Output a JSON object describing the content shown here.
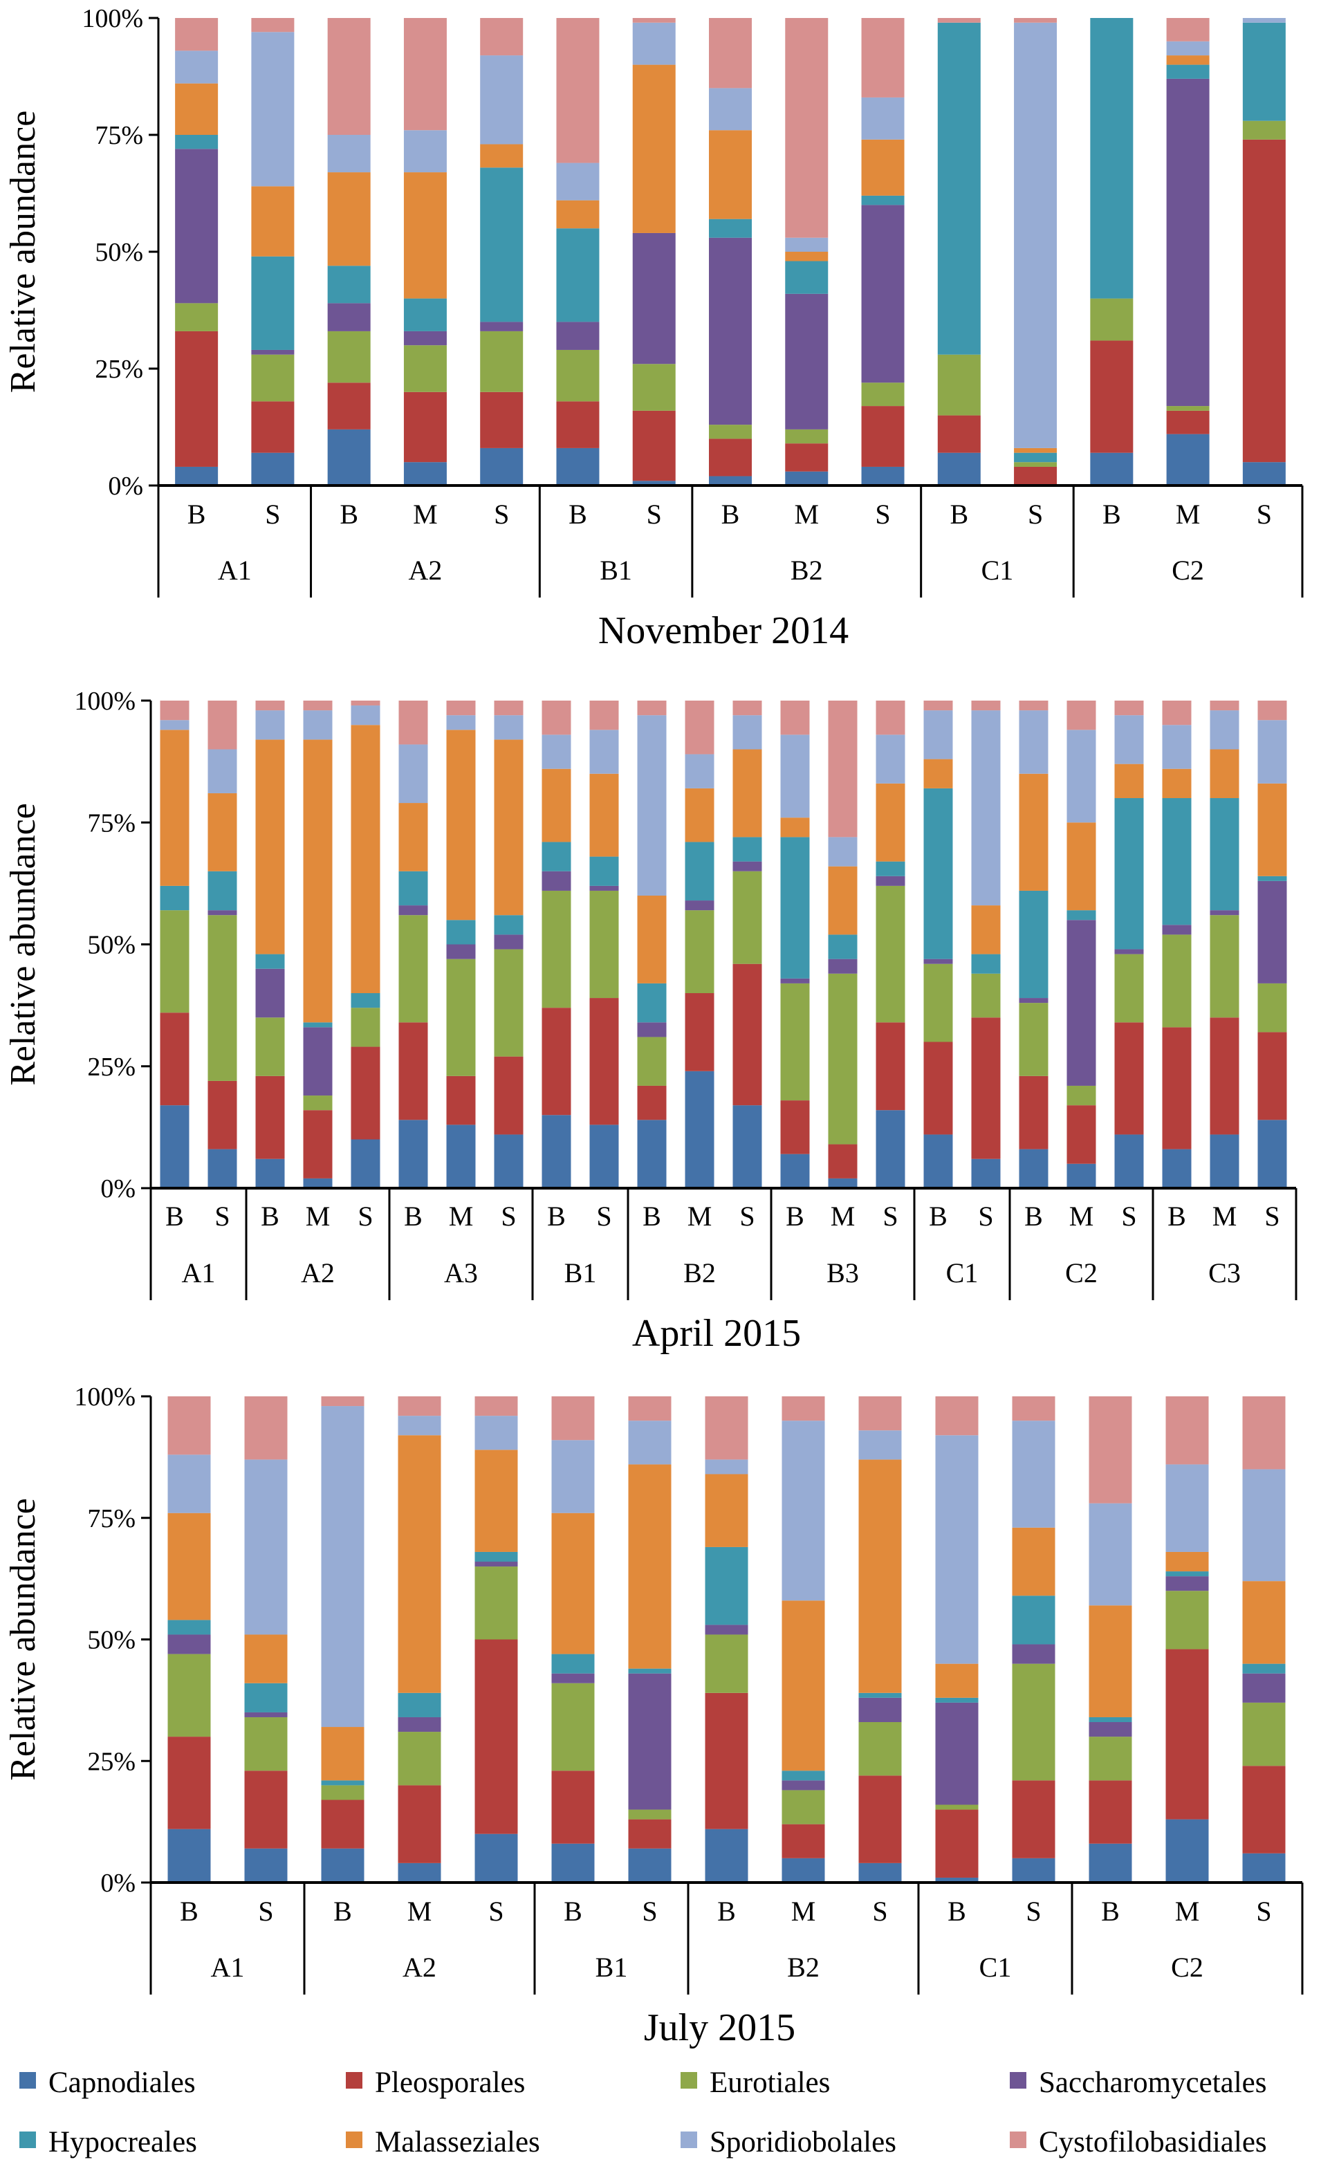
{
  "colors": {
    "Capnodiales": "#4472a8",
    "Pleosporales": "#b43f3c",
    "Eurotiales": "#8ea84a",
    "Saccharomycetales": "#6e5594",
    "Hypocreales": "#3e97ad",
    "Malasseziales": "#e18a3b",
    "Sporidiobolales": "#97acd4",
    "Cystofilobasidiales": "#d7908f"
  },
  "legend": {
    "items": [
      "Capnodiales",
      "Pleosporales",
      "Eurotiales",
      "Saccharomycetales",
      "Hypocreales",
      "Malasseziales",
      "Sporidiobolales",
      "Cystofilobasidiales"
    ]
  },
  "chart_data": [
    {
      "type": "bar",
      "stacked": true,
      "title": "November 2014",
      "ylabel": "Relative abundance",
      "yticks": [
        "0%",
        "25%",
        "50%",
        "75%",
        "100%"
      ],
      "ylim": [
        0,
        100
      ],
      "series_order": [
        "Capnodiales",
        "Pleosporales",
        "Eurotiales",
        "Saccharomycetales",
        "Hypocreales",
        "Malasseziales",
        "Sporidiobolales",
        "Cystofilobasidiales"
      ],
      "groups": [
        {
          "label": "A1",
          "bars": [
            {
              "label": "B",
              "values": [
                4,
                29,
                6,
                33,
                3,
                11,
                7,
                7
              ]
            },
            {
              "label": "S",
              "values": [
                7,
                11,
                10,
                1,
                20,
                15,
                33,
                3
              ]
            }
          ]
        },
        {
          "label": "A2",
          "bars": [
            {
              "label": "B",
              "values": [
                12,
                10,
                11,
                6,
                8,
                20,
                8,
                25
              ]
            },
            {
              "label": "M",
              "values": [
                5,
                15,
                10,
                3,
                7,
                27,
                9,
                24
              ]
            },
            {
              "label": "S",
              "values": [
                8,
                12,
                13,
                2,
                33,
                5,
                19,
                8
              ]
            }
          ]
        },
        {
          "label": "B1",
          "bars": [
            {
              "label": "B",
              "values": [
                8,
                10,
                11,
                6,
                20,
                6,
                8,
                31
              ]
            },
            {
              "label": "S",
              "values": [
                1,
                15,
                10,
                28,
                0,
                36,
                9,
                1
              ]
            }
          ]
        },
        {
          "label": "B2",
          "bars": [
            {
              "label": "B",
              "values": [
                2,
                8,
                3,
                40,
                4,
                19,
                9,
                15
              ]
            },
            {
              "label": "M",
              "values": [
                3,
                6,
                3,
                29,
                7,
                2,
                3,
                47
              ]
            },
            {
              "label": "S",
              "values": [
                4,
                13,
                5,
                38,
                2,
                12,
                9,
                17
              ]
            }
          ]
        },
        {
          "label": "C1",
          "bars": [
            {
              "label": "B",
              "values": [
                7,
                8,
                13,
                0,
                71,
                0,
                0,
                1
              ]
            },
            {
              "label": "S",
              "values": [
                0,
                4,
                1,
                0,
                2,
                1,
                91,
                1
              ]
            }
          ]
        },
        {
          "label": "C2",
          "bars": [
            {
              "label": "B",
              "values": [
                7,
                24,
                9,
                0,
                60,
                0,
                0,
                0
              ]
            },
            {
              "label": "M",
              "values": [
                11,
                5,
                1,
                70,
                3,
                2,
                3,
                5
              ]
            },
            {
              "label": "S",
              "values": [
                5,
                69,
                4,
                0,
                21,
                0,
                1,
                0
              ]
            }
          ]
        }
      ]
    },
    {
      "type": "bar",
      "stacked": true,
      "title": "April 2015",
      "ylabel": "Relative abundance",
      "yticks": [
        "0%",
        "25%",
        "50%",
        "75%",
        "100%"
      ],
      "ylim": [
        0,
        100
      ],
      "series_order": [
        "Capnodiales",
        "Pleosporales",
        "Eurotiales",
        "Saccharomycetales",
        "Hypocreales",
        "Malasseziales",
        "Sporidiobolales",
        "Cystofilobasidiales"
      ],
      "groups": [
        {
          "label": "A1",
          "bars": [
            {
              "label": "B",
              "values": [
                17,
                19,
                21,
                0,
                5,
                32,
                2,
                4
              ]
            },
            {
              "label": "S",
              "values": [
                8,
                14,
                34,
                1,
                8,
                16,
                9,
                10
              ]
            }
          ]
        },
        {
          "label": "A2",
          "bars": [
            {
              "label": "B",
              "values": [
                6,
                17,
                12,
                10,
                3,
                44,
                6,
                2
              ]
            },
            {
              "label": "M",
              "values": [
                2,
                14,
                3,
                14,
                1,
                58,
                6,
                2
              ]
            },
            {
              "label": "S",
              "values": [
                10,
                19,
                8,
                0,
                3,
                55,
                4,
                1
              ]
            }
          ]
        },
        {
          "label": "A3",
          "bars": [
            {
              "label": "B",
              "values": [
                14,
                20,
                22,
                2,
                7,
                14,
                12,
                9
              ]
            },
            {
              "label": "M",
              "values": [
                13,
                10,
                24,
                3,
                5,
                39,
                3,
                3
              ]
            },
            {
              "label": "S",
              "values": [
                11,
                16,
                22,
                3,
                4,
                36,
                5,
                3
              ]
            }
          ]
        },
        {
          "label": "B1",
          "bars": [
            {
              "label": "B",
              "values": [
                15,
                22,
                24,
                4,
                6,
                15,
                7,
                7
              ]
            },
            {
              "label": "S",
              "values": [
                13,
                26,
                22,
                1,
                6,
                17,
                9,
                6
              ]
            }
          ]
        },
        {
          "label": "B2",
          "bars": [
            {
              "label": "B",
              "values": [
                14,
                7,
                10,
                3,
                8,
                18,
                37,
                3
              ]
            },
            {
              "label": "M",
              "values": [
                24,
                16,
                17,
                2,
                12,
                11,
                7,
                11
              ]
            },
            {
              "label": "S",
              "values": [
                17,
                29,
                19,
                2,
                5,
                18,
                7,
                3
              ]
            }
          ]
        },
        {
          "label": "B3",
          "bars": [
            {
              "label": "B",
              "values": [
                7,
                11,
                24,
                1,
                29,
                4,
                17,
                7
              ]
            },
            {
              "label": "M",
              "values": [
                2,
                7,
                35,
                3,
                5,
                14,
                6,
                28
              ]
            },
            {
              "label": "S",
              "values": [
                16,
                18,
                28,
                2,
                3,
                16,
                10,
                7
              ]
            }
          ]
        },
        {
          "label": "C1",
          "bars": [
            {
              "label": "B",
              "values": [
                11,
                19,
                16,
                1,
                35,
                6,
                10,
                2
              ]
            },
            {
              "label": "S",
              "values": [
                6,
                29,
                9,
                0,
                4,
                10,
                40,
                2
              ]
            }
          ]
        },
        {
          "label": "C2",
          "bars": [
            {
              "label": "B",
              "values": [
                8,
                15,
                15,
                1,
                22,
                24,
                13,
                2
              ]
            },
            {
              "label": "M",
              "values": [
                5,
                12,
                4,
                34,
                2,
                18,
                19,
                6
              ]
            },
            {
              "label": "S",
              "values": [
                11,
                23,
                14,
                1,
                31,
                7,
                10,
                3
              ]
            }
          ]
        },
        {
          "label": "C3",
          "bars": [
            {
              "label": "B",
              "values": [
                8,
                25,
                19,
                2,
                26,
                6,
                9,
                5
              ]
            },
            {
              "label": "M",
              "values": [
                11,
                24,
                21,
                1,
                23,
                10,
                8,
                2
              ]
            },
            {
              "label": "S",
              "values": [
                14,
                18,
                10,
                21,
                1,
                19,
                13,
                4
              ]
            }
          ]
        }
      ]
    },
    {
      "type": "bar",
      "stacked": true,
      "title": "July 2015",
      "ylabel": "Relative abundance",
      "yticks": [
        "0%",
        "25%",
        "50%",
        "75%",
        "100%"
      ],
      "ylim": [
        0,
        100
      ],
      "series_order": [
        "Capnodiales",
        "Pleosporales",
        "Eurotiales",
        "Saccharomycetales",
        "Hypocreales",
        "Malasseziales",
        "Sporidiobolales",
        "Cystofilobasidiales"
      ],
      "groups": [
        {
          "label": "A1",
          "bars": [
            {
              "label": "B",
              "values": [
                11,
                19,
                17,
                4,
                3,
                22,
                12,
                12
              ]
            },
            {
              "label": "S",
              "values": [
                7,
                16,
                11,
                1,
                6,
                10,
                36,
                13
              ]
            }
          ]
        },
        {
          "label": "A2",
          "bars": [
            {
              "label": "B",
              "values": [
                7,
                10,
                3,
                0,
                1,
                11,
                66,
                2
              ]
            },
            {
              "label": "M",
              "values": [
                4,
                16,
                11,
                3,
                5,
                53,
                4,
                4
              ]
            },
            {
              "label": "S",
              "values": [
                10,
                40,
                15,
                1,
                2,
                21,
                7,
                4
              ]
            }
          ]
        },
        {
          "label": "B1",
          "bars": [
            {
              "label": "B",
              "values": [
                8,
                15,
                18,
                2,
                4,
                29,
                15,
                9
              ]
            },
            {
              "label": "S",
              "values": [
                7,
                6,
                2,
                28,
                1,
                42,
                9,
                5
              ]
            }
          ]
        },
        {
          "label": "B2",
          "bars": [
            {
              "label": "B",
              "values": [
                11,
                28,
                12,
                2,
                16,
                15,
                3,
                13
              ]
            },
            {
              "label": "M",
              "values": [
                5,
                7,
                7,
                2,
                2,
                35,
                37,
                5
              ]
            },
            {
              "label": "S",
              "values": [
                4,
                18,
                11,
                5,
                1,
                48,
                6,
                7
              ]
            }
          ]
        },
        {
          "label": "C1",
          "bars": [
            {
              "label": "B",
              "values": [
                1,
                14,
                1,
                21,
                1,
                7,
                47,
                8
              ]
            },
            {
              "label": "S",
              "values": [
                5,
                16,
                24,
                4,
                10,
                14,
                22,
                5
              ]
            }
          ]
        },
        {
          "label": "C2",
          "bars": [
            {
              "label": "B",
              "values": [
                8,
                13,
                9,
                3,
                1,
                23,
                21,
                22
              ]
            },
            {
              "label": "M",
              "values": [
                13,
                35,
                12,
                3,
                1,
                4,
                18,
                14
              ]
            },
            {
              "label": "S",
              "values": [
                6,
                18,
                13,
                6,
                2,
                17,
                23,
                15
              ]
            }
          ]
        }
      ]
    }
  ]
}
